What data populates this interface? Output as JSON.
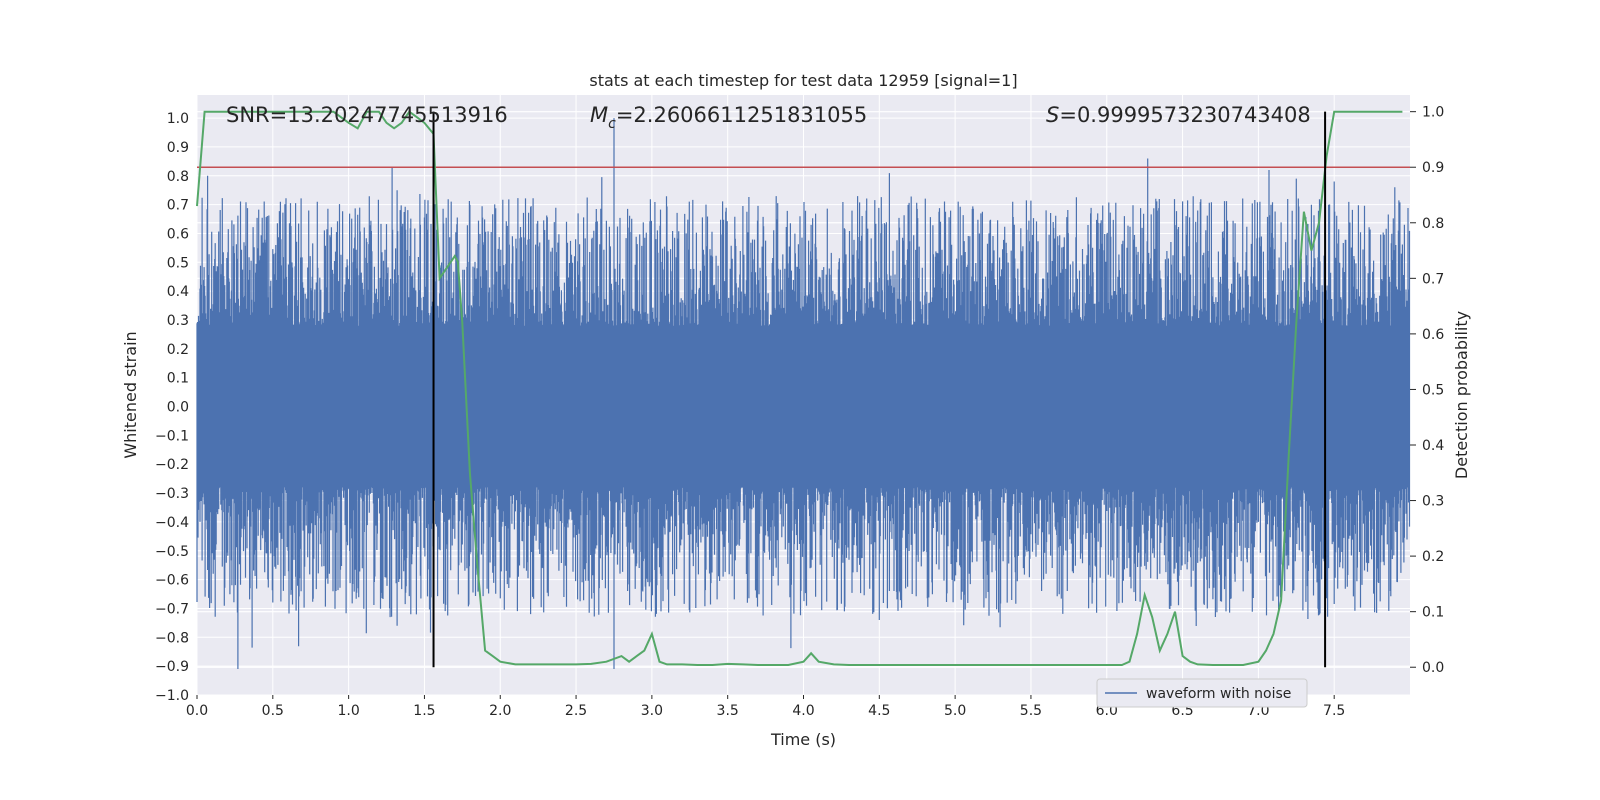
{
  "chart_data": {
    "type": "line",
    "title": "stats at each timestep for test data 12959 [signal=1]",
    "xlabel": "Time (s)",
    "ylabel_left": "Whitened strain",
    "ylabel_right": "Detection probability",
    "xlim": [
      0.0,
      8.0
    ],
    "ylim_left": [
      -1.0,
      1.08
    ],
    "ylim_right": [
      -0.05,
      1.03
    ],
    "x_ticks": [
      "0.0",
      "0.5",
      "1.0",
      "1.5",
      "2.0",
      "2.5",
      "3.0",
      "3.5",
      "4.0",
      "4.5",
      "5.0",
      "5.5",
      "6.0",
      "6.5",
      "7.0",
      "7.5"
    ],
    "y_ticks_left": [
      "-1.0",
      "-0.9",
      "-0.8",
      "-0.7",
      "-0.6",
      "-0.5",
      "-0.4",
      "-0.3",
      "-0.2",
      "-0.1",
      "0.0",
      "0.1",
      "0.2",
      "0.3",
      "0.4",
      "0.5",
      "0.6",
      "0.7",
      "0.8",
      "0.9",
      "1.0"
    ],
    "y_ticks_right": [
      "0.0",
      "0.1",
      "0.2",
      "0.3",
      "0.4",
      "0.5",
      "0.6",
      "0.7",
      "0.8",
      "0.9",
      "1.0"
    ],
    "grid": true,
    "legend": {
      "placement": "lower-right",
      "entries": [
        "waveform with noise"
      ]
    },
    "annotations": {
      "snr": "SNR=13.20247745513916",
      "mc_symbol": "M",
      "mc_sub": "c",
      "mc_value": "=2.2606611251831055",
      "s_symbol": "S",
      "s_value": "=0.9999573230743408"
    },
    "threshold_right": 0.9,
    "window_markers_x": [
      1.56,
      7.44
    ],
    "waveform_envelope": {
      "description_free": true,
      "core_amplitude": 0.25,
      "typical_peak": 0.5,
      "spikes": [
        {
          "x": 0.07,
          "y": 0.8
        },
        {
          "x": 0.27,
          "y": -0.91
        },
        {
          "x": 1.32,
          "y": 0.75
        },
        {
          "x": 1.32,
          "y": -0.76
        },
        {
          "x": 2.75,
          "y": 1.0
        },
        {
          "x": 2.75,
          "y": -0.91
        },
        {
          "x": 4.5,
          "y": -0.74
        },
        {
          "x": 6.27,
          "y": 0.86
        },
        {
          "x": 7.07,
          "y": 0.82
        },
        {
          "x": 7.5,
          "y": 0.78
        },
        {
          "x": 7.9,
          "y": 0.76
        }
      ]
    },
    "series": [
      {
        "name": "waveform with noise",
        "axis": "left",
        "color": "#4c72b0"
      },
      {
        "axis": "right",
        "color": "#55a868",
        "x": [
          0.0,
          0.05,
          0.1,
          0.2,
          0.3,
          0.4,
          0.5,
          0.6,
          0.7,
          0.8,
          0.9,
          1.0,
          1.06,
          1.12,
          1.2,
          1.25,
          1.3,
          1.35,
          1.4,
          1.45,
          1.5,
          1.56,
          1.6,
          1.65,
          1.7,
          1.72,
          1.75,
          1.8,
          1.85,
          1.9,
          1.95,
          2.0,
          2.1,
          2.2,
          2.3,
          2.4,
          2.5,
          2.6,
          2.7,
          2.8,
          2.85,
          2.9,
          2.95,
          3.0,
          3.05,
          3.1,
          3.2,
          3.3,
          3.4,
          3.5,
          3.6,
          3.7,
          3.8,
          3.9,
          4.0,
          4.05,
          4.1,
          4.2,
          4.3,
          4.4,
          4.5,
          4.7,
          5.0,
          5.5,
          6.0,
          6.1,
          6.15,
          6.2,
          6.25,
          6.3,
          6.35,
          6.4,
          6.45,
          6.5,
          6.55,
          6.6,
          6.7,
          6.8,
          6.9,
          7.0,
          7.05,
          7.1,
          7.15,
          7.2,
          7.25,
          7.3,
          7.35,
          7.4,
          7.45,
          7.5,
          7.55,
          7.6,
          7.7,
          7.8,
          7.9,
          7.95
        ],
        "y": [
          0.83,
          1.0,
          1.0,
          1.0,
          1.0,
          1.0,
          1.0,
          1.0,
          1.0,
          1.0,
          1.0,
          0.98,
          0.97,
          1.0,
          1.0,
          0.98,
          0.97,
          0.98,
          1.0,
          0.99,
          0.98,
          0.96,
          0.7,
          0.72,
          0.74,
          0.73,
          0.62,
          0.35,
          0.18,
          0.03,
          0.02,
          0.01,
          0.005,
          0.005,
          0.005,
          0.005,
          0.005,
          0.006,
          0.01,
          0.02,
          0.01,
          0.02,
          0.03,
          0.06,
          0.01,
          0.005,
          0.005,
          0.004,
          0.004,
          0.006,
          0.005,
          0.004,
          0.004,
          0.004,
          0.01,
          0.025,
          0.01,
          0.005,
          0.004,
          0.004,
          0.004,
          0.004,
          0.004,
          0.004,
          0.004,
          0.004,
          0.01,
          0.06,
          0.13,
          0.09,
          0.03,
          0.06,
          0.1,
          0.02,
          0.01,
          0.005,
          0.004,
          0.004,
          0.004,
          0.01,
          0.03,
          0.06,
          0.12,
          0.38,
          0.62,
          0.82,
          0.75,
          0.8,
          0.92,
          1.0,
          1.0,
          1.0,
          1.0,
          1.0,
          1.0,
          1.0
        ]
      }
    ],
    "colors": {
      "background": "#eaeaf2",
      "grid": "#ffffff",
      "threshold": "#c44e52",
      "window_marker": "#000000"
    }
  }
}
